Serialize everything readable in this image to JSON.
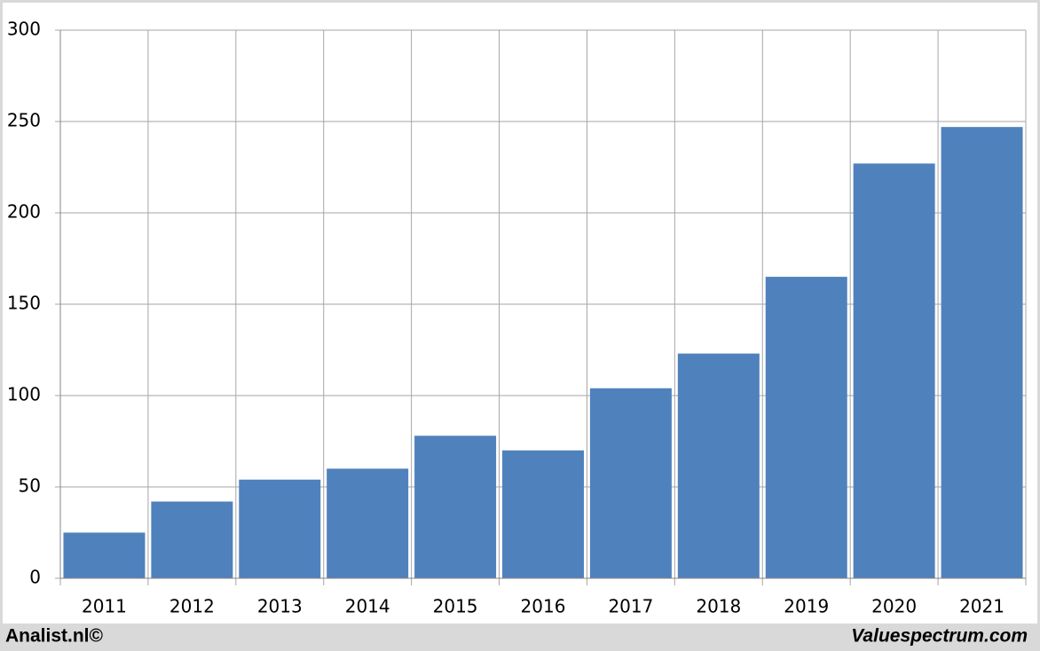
{
  "chart_data": {
    "type": "bar",
    "categories": [
      "2011",
      "2012",
      "2013",
      "2014",
      "2015",
      "2016",
      "2017",
      "2018",
      "2019",
      "2020",
      "2021"
    ],
    "values": [
      25,
      42,
      54,
      60,
      78,
      70,
      104,
      123,
      165,
      227,
      247
    ],
    "color": "#4f81bd",
    "ylim": [
      0,
      300
    ],
    "yticks": [
      0,
      50,
      100,
      150,
      200,
      250,
      300
    ],
    "grid": true,
    "footer_left": "Analist.nl©",
    "footer_right": "Valuespectrum.com"
  }
}
